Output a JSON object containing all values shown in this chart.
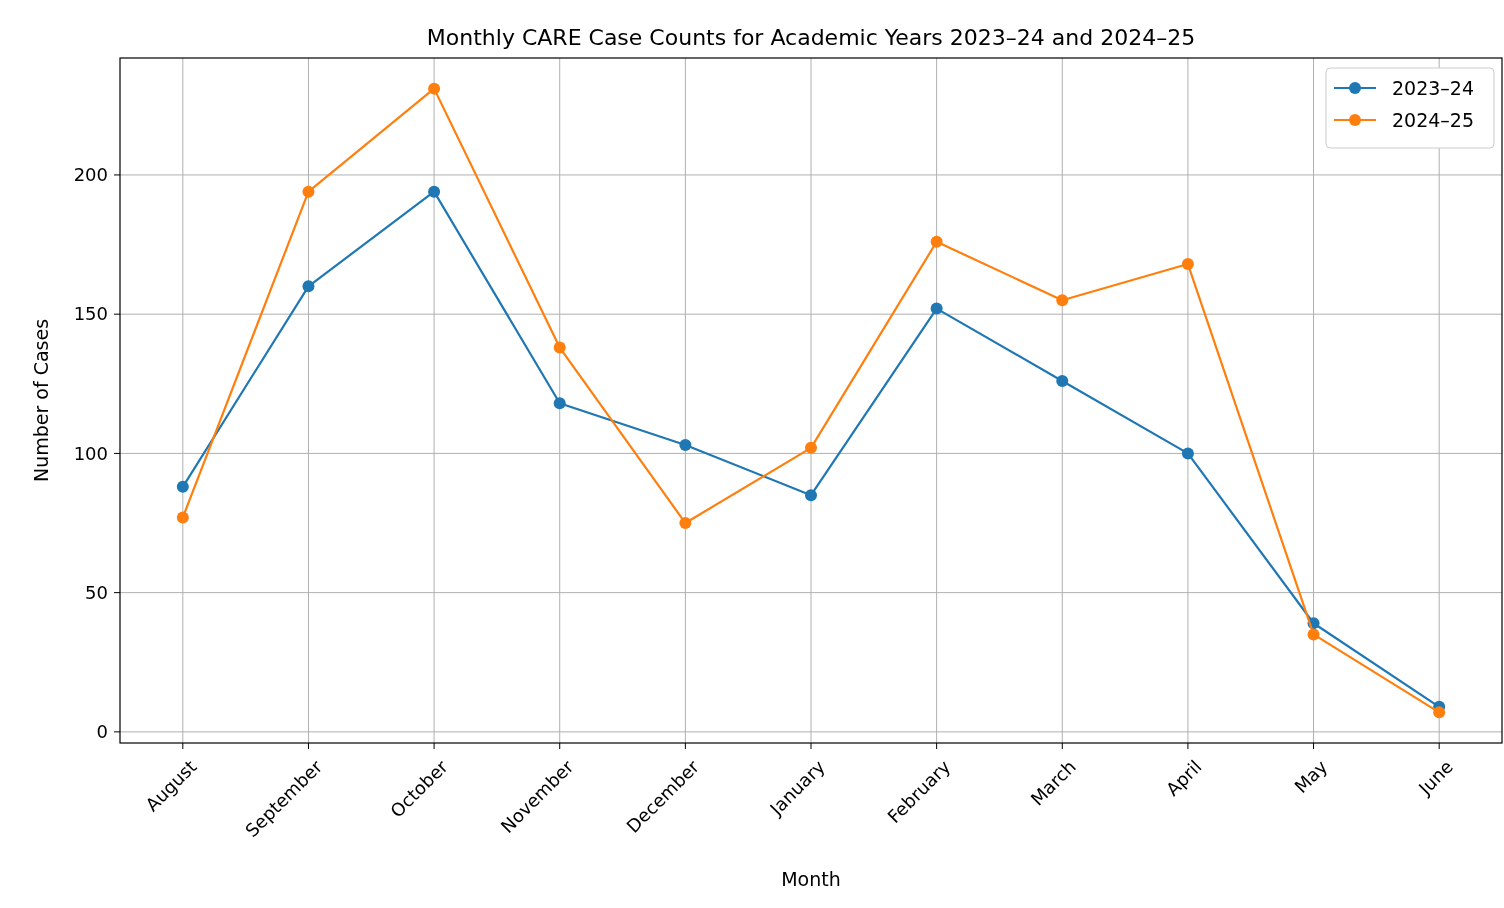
{
  "chart_data": {
    "type": "line",
    "title": "Monthly CARE Case Counts for Academic Years 2023–24 and 2024–25",
    "xlabel": "Month",
    "ylabel": "Number of Cases",
    "categories": [
      "August",
      "September",
      "October",
      "November",
      "December",
      "January",
      "February",
      "March",
      "April",
      "May",
      "June"
    ],
    "series": [
      {
        "name": "2023–24",
        "color": "#1f77b4",
        "values": [
          88,
          160,
          194,
          118,
          103,
          85,
          152,
          126,
          100,
          39,
          9
        ]
      },
      {
        "name": "2024–25",
        "color": "#ff7f0e",
        "values": [
          77,
          194,
          231,
          138,
          75,
          102,
          176,
          155,
          168,
          35,
          7
        ]
      }
    ],
    "ylim": [
      -4,
      242
    ],
    "yticks": [
      0,
      50,
      100,
      150,
      200
    ],
    "grid": true,
    "legend": "top right",
    "marker": "circle",
    "line_style": "solid"
  }
}
